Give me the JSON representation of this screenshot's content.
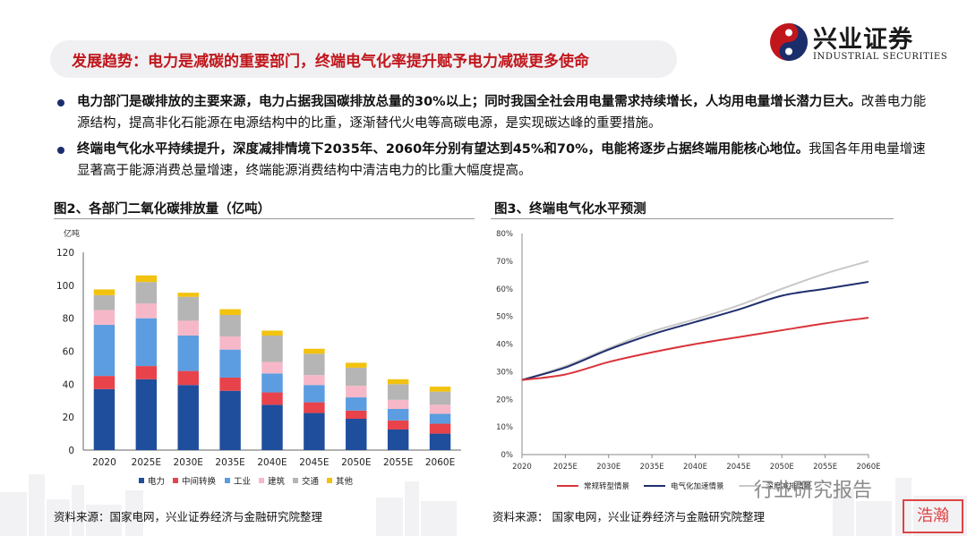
{
  "header": {
    "title": "发展趋势：电力是减碳的重要部门，终端电气化率提升赋予电力减碳更多使命",
    "logo_cn": "兴业证券",
    "logo_en": "INDUSTRIAL SECURITIES"
  },
  "bullets": [
    {
      "bold": "电力部门是碳排放的主要来源，电力占据我国碳排放总量的30%以上；同时我国全社会用电量需求持续增长，人均用电量增长潜力巨大。",
      "normal": "改善电力能源结构，提高非化石能源在电源结构中的比重，逐渐替代火电等高碳电源，是实现碳达峰的重要措施。"
    },
    {
      "bold": "终端电气化水平持续提升，深度减排情境下2035年、2060年分别有望达到45%和70%，电能将逐步占据终端用能核心地位。",
      "normal": "我国各年用电量增速显著高于能源消费总量增速，终端能源消费结构中清洁电力的比重大幅度提高。"
    }
  ],
  "fig2": {
    "heading": "图2、各部门二氧化碳排放量（亿吨）",
    "source": "资料来源：国家电网，兴业证券经济与金融研究院整理"
  },
  "fig3": {
    "heading": "图3、终端电气化水平预测",
    "source": "资料来源：  国家电网，兴业证券经济与金融研究院整理"
  },
  "watermark": {
    "text": "行业研究报告",
    "stamp": "浩瀚"
  },
  "chart_data": [
    {
      "type": "bar",
      "stacked": true,
      "ylabel": "亿吨",
      "ylim": [
        0,
        120
      ],
      "yticks": [
        0,
        20,
        40,
        60,
        80,
        100,
        120
      ],
      "categories": [
        "2020",
        "2025E",
        "2030E",
        "2035E",
        "2040E",
        "2045E",
        "2050E",
        "2055E",
        "2060E"
      ],
      "series": [
        {
          "name": "电力",
          "color": "#1f4e9c",
          "values": [
            37,
            43,
            39.5,
            36,
            27.5,
            22.5,
            19,
            12.5,
            10
          ]
        },
        {
          "name": "中间转换",
          "color": "#e8424b",
          "values": [
            8,
            8,
            8.5,
            8,
            7.5,
            6.5,
            5,
            5.5,
            6
          ]
        },
        {
          "name": "工业",
          "color": "#5b9de0",
          "values": [
            31,
            29,
            21.5,
            17,
            11.5,
            10.5,
            8,
            7,
            6
          ]
        },
        {
          "name": "建筑",
          "color": "#f6b8c8",
          "values": [
            9,
            9,
            9,
            8,
            7,
            6,
            7,
            5.5,
            5.5
          ]
        },
        {
          "name": "交通",
          "color": "#b5b5b5",
          "values": [
            9,
            13,
            14.5,
            13,
            16,
            13,
            11,
            9.5,
            8
          ]
        },
        {
          "name": "其他",
          "color": "#f2c20e",
          "values": [
            3.5,
            4,
            2.5,
            3.5,
            3,
            3,
            3,
            3,
            3
          ]
        }
      ],
      "legend": "bottom"
    },
    {
      "type": "line",
      "ylim": [
        0,
        0.8
      ],
      "yticks": [
        "0%",
        "10%",
        "20%",
        "30%",
        "40%",
        "50%",
        "60%",
        "70%",
        "80%"
      ],
      "x": [
        "2020",
        "2025E",
        "2030E",
        "2035E",
        "2040E",
        "2045E",
        "2050E",
        "2055E",
        "2060E"
      ],
      "series": [
        {
          "name": "常规转型情景",
          "color": "#d9343a",
          "values": [
            0.27,
            0.29,
            0.335,
            0.37,
            0.4,
            0.425,
            0.45,
            0.475,
            0.495
          ]
        },
        {
          "name": "电气化加速情景",
          "color": "#1f2e6e",
          "values": [
            0.27,
            0.315,
            0.38,
            0.435,
            0.48,
            0.525,
            0.575,
            0.6,
            0.625
          ]
        },
        {
          "name": "深度减排情景",
          "color": "#c8c8c8",
          "values": [
            0.27,
            0.32,
            0.385,
            0.445,
            0.49,
            0.54,
            0.6,
            0.655,
            0.7
          ]
        }
      ],
      "legend": "bottom"
    }
  ]
}
